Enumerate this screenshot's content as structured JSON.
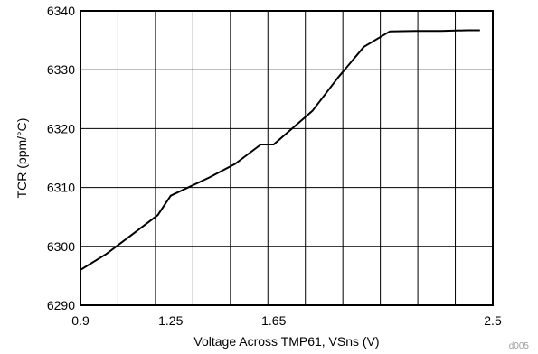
{
  "chart_data": {
    "type": "line",
    "xlabel": "Voltage Across TMP61, VSns (V)",
    "ylabel": "TCR (ppm/°C)",
    "xlim": [
      0.9,
      2.5
    ],
    "ylim": [
      6290,
      6340
    ],
    "y_ticks": [
      "6290",
      "6300",
      "6310",
      "6320",
      "6330",
      "6340"
    ],
    "x_tick_labels": [
      {
        "value": 0.9,
        "label": "0.9"
      },
      {
        "value": 1.25,
        "label": "1.25"
      },
      {
        "value": 1.65,
        "label": "1.65"
      },
      {
        "value": 2.5,
        "label": "2.5"
      }
    ],
    "grid": true,
    "series": [
      {
        "x": [
          0.9,
          1.0,
          1.1,
          1.2,
          1.25,
          1.4,
          1.5,
          1.6,
          1.65,
          1.8,
          1.9,
          2.0,
          2.1,
          2.2,
          2.3,
          2.4,
          2.45
        ],
        "y": [
          6296.0,
          6298.7,
          6302.0,
          6305.3,
          6308.6,
          6311.7,
          6314.0,
          6317.3,
          6317.3,
          6323.0,
          6328.7,
          6333.9,
          6336.5,
          6336.6,
          6336.6,
          6336.7,
          6336.7
        ],
        "color": "#000000"
      }
    ],
    "figure_id": "d005"
  }
}
